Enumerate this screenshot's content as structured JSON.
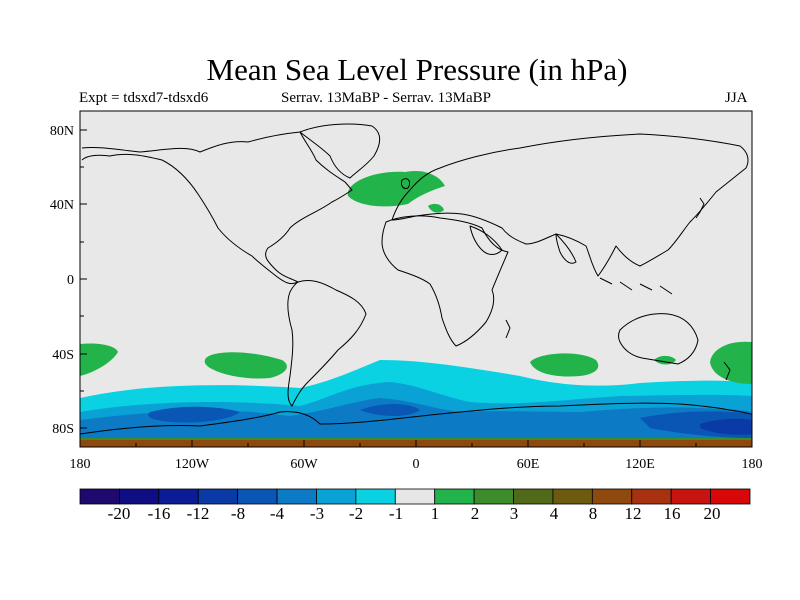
{
  "map": {
    "title": "Mean Sea Level Pressure (in hPa)",
    "subtitle_left": "Expt = tdsxd7-tdsxd6",
    "subtitle_center": "Serrav.   13MaBP - Serrav.   13MaBP",
    "subtitle_right": "JJA",
    "lat_ticks": [
      "80N",
      "40N",
      "0",
      "40S",
      "80S"
    ],
    "lon_ticks": [
      "180",
      "120W",
      "60W",
      "0",
      "60E",
      "120E",
      "180"
    ],
    "background_color": "#e8e8e8",
    "coast_color": "#000000"
  },
  "colorbar": {
    "labels": [
      "-20",
      "-16",
      "-12",
      "-8",
      "-4",
      "-3",
      "-2",
      "-1",
      "1",
      "2",
      "3",
      "4",
      "8",
      "12",
      "16",
      "20"
    ],
    "colors": [
      "#1e0a6e",
      "#0e0e82",
      "#0c1c96",
      "#0a3aa6",
      "#0a56b4",
      "#0d7ac6",
      "#0aa2d4",
      "#0ad2e2",
      "#e6e6e6",
      "#22b44a",
      "#3c8c2c",
      "#506a1a",
      "#6e5a0e",
      "#8e4a0e",
      "#a83210",
      "#c8140e",
      "#d80808"
    ]
  }
}
